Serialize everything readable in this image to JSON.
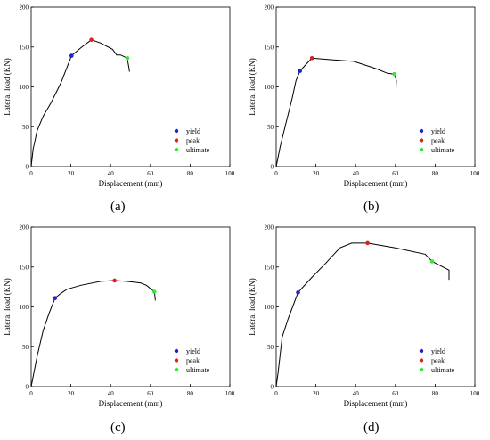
{
  "colors": {
    "yield": "#1f1fd0",
    "peak": "#e02020",
    "ultimate": "#33e833",
    "curve": "#000000"
  },
  "chart_data": [
    {
      "type": "line",
      "label": "(a)",
      "xlabel": "Displacement (mm)",
      "ylabel": "Lateral load (KN)",
      "xlim": [
        0,
        100
      ],
      "ylim": [
        0,
        200
      ],
      "xticks": [
        "0",
        "20",
        "40",
        "60",
        "80",
        "100"
      ],
      "yticks": [
        "0",
        "50",
        "100",
        "150",
        "200"
      ],
      "legend": [
        "yield",
        "peak",
        "ultimate"
      ],
      "legend_position": "bottom-right",
      "curve": {
        "x": [
          0,
          1,
          3,
          6,
          10,
          15,
          20.3,
          25,
          30.3,
          35,
          41,
          43,
          45,
          48.4,
          49.5
        ],
        "y": [
          0,
          22,
          45,
          63,
          80,
          105,
          139,
          149,
          159,
          155,
          147,
          140,
          140,
          136,
          119
        ]
      },
      "points": [
        {
          "name": "yield",
          "x": 20.3,
          "y": 139
        },
        {
          "name": "peak",
          "x": 30.3,
          "y": 159
        },
        {
          "name": "ultimate",
          "x": 48.4,
          "y": 136
        }
      ]
    },
    {
      "type": "line",
      "label": "(b)",
      "xlabel": "Displacement (mm)",
      "ylabel": "Lateral load (KN)",
      "xlim": [
        0,
        100
      ],
      "ylim": [
        0,
        200
      ],
      "xticks": [
        "0",
        "20",
        "40",
        "60",
        "80",
        "100"
      ],
      "yticks": [
        "0",
        "50",
        "100",
        "150",
        "200"
      ],
      "legend": [
        "yield",
        "peak",
        "ultimate"
      ],
      "legend_position": "bottom-right",
      "curve": {
        "x": [
          0,
          2,
          5,
          8,
          10,
          12,
          15,
          18,
          28,
          39,
          50,
          56,
          59.5,
          60.5,
          60.3
        ],
        "y": [
          0,
          25,
          55,
          85,
          108,
          120,
          128,
          136,
          134,
          132,
          123,
          117,
          116,
          108,
          98
        ]
      },
      "points": [
        {
          "name": "yield",
          "x": 12,
          "y": 120
        },
        {
          "name": "peak",
          "x": 18,
          "y": 136
        },
        {
          "name": "ultimate",
          "x": 59.5,
          "y": 116
        }
      ]
    },
    {
      "type": "line",
      "label": "(c)",
      "xlabel": "Displacement (mm)",
      "ylabel": "Lateral load (KN)",
      "xlim": [
        0,
        100
      ],
      "ylim": [
        0,
        200
      ],
      "xticks": [
        "0",
        "20",
        "40",
        "60",
        "80",
        "100"
      ],
      "yticks": [
        "0",
        "50",
        "100",
        "150",
        "200"
      ],
      "legend": [
        "yield",
        "peak",
        "ultimate"
      ],
      "legend_position": "bottom-right",
      "curve": {
        "x": [
          0,
          3,
          6,
          9,
          12,
          15,
          18,
          25,
          35,
          42,
          48,
          55,
          58,
          62,
          62.5
        ],
        "y": [
          0,
          38,
          70,
          92,
          111,
          117,
          122,
          127,
          132,
          133,
          132,
          130,
          127,
          119,
          108
        ]
      },
      "points": [
        {
          "name": "yield",
          "x": 12,
          "y": 111
        },
        {
          "name": "peak",
          "x": 42,
          "y": 133
        },
        {
          "name": "ultimate",
          "x": 62,
          "y": 119
        }
      ]
    },
    {
      "type": "line",
      "label": "(d)",
      "xlabel": "Displacement (mm)",
      "ylabel": "Lateral load (KN)",
      "xlim": [
        0,
        100
      ],
      "ylim": [
        0,
        200
      ],
      "xticks": [
        "0",
        "20",
        "40",
        "60",
        "80",
        "100"
      ],
      "yticks": [
        "0",
        "50",
        "100",
        "150",
        "200"
      ],
      "legend": [
        "yield",
        "peak",
        "ultimate"
      ],
      "legend_position": "bottom-right",
      "curve": {
        "x": [
          0,
          1,
          3,
          6,
          11,
          18,
          25,
          32,
          38,
          46,
          60,
          75,
          78.5,
          87,
          87
        ],
        "y": [
          0,
          18,
          62,
          85,
          118,
          137,
          155,
          174,
          180,
          180,
          174,
          166,
          157,
          146,
          134
        ]
      },
      "points": [
        {
          "name": "yield",
          "x": 11,
          "y": 118
        },
        {
          "name": "peak",
          "x": 46,
          "y": 180
        },
        {
          "name": "ultimate",
          "x": 78.5,
          "y": 157
        }
      ]
    }
  ]
}
